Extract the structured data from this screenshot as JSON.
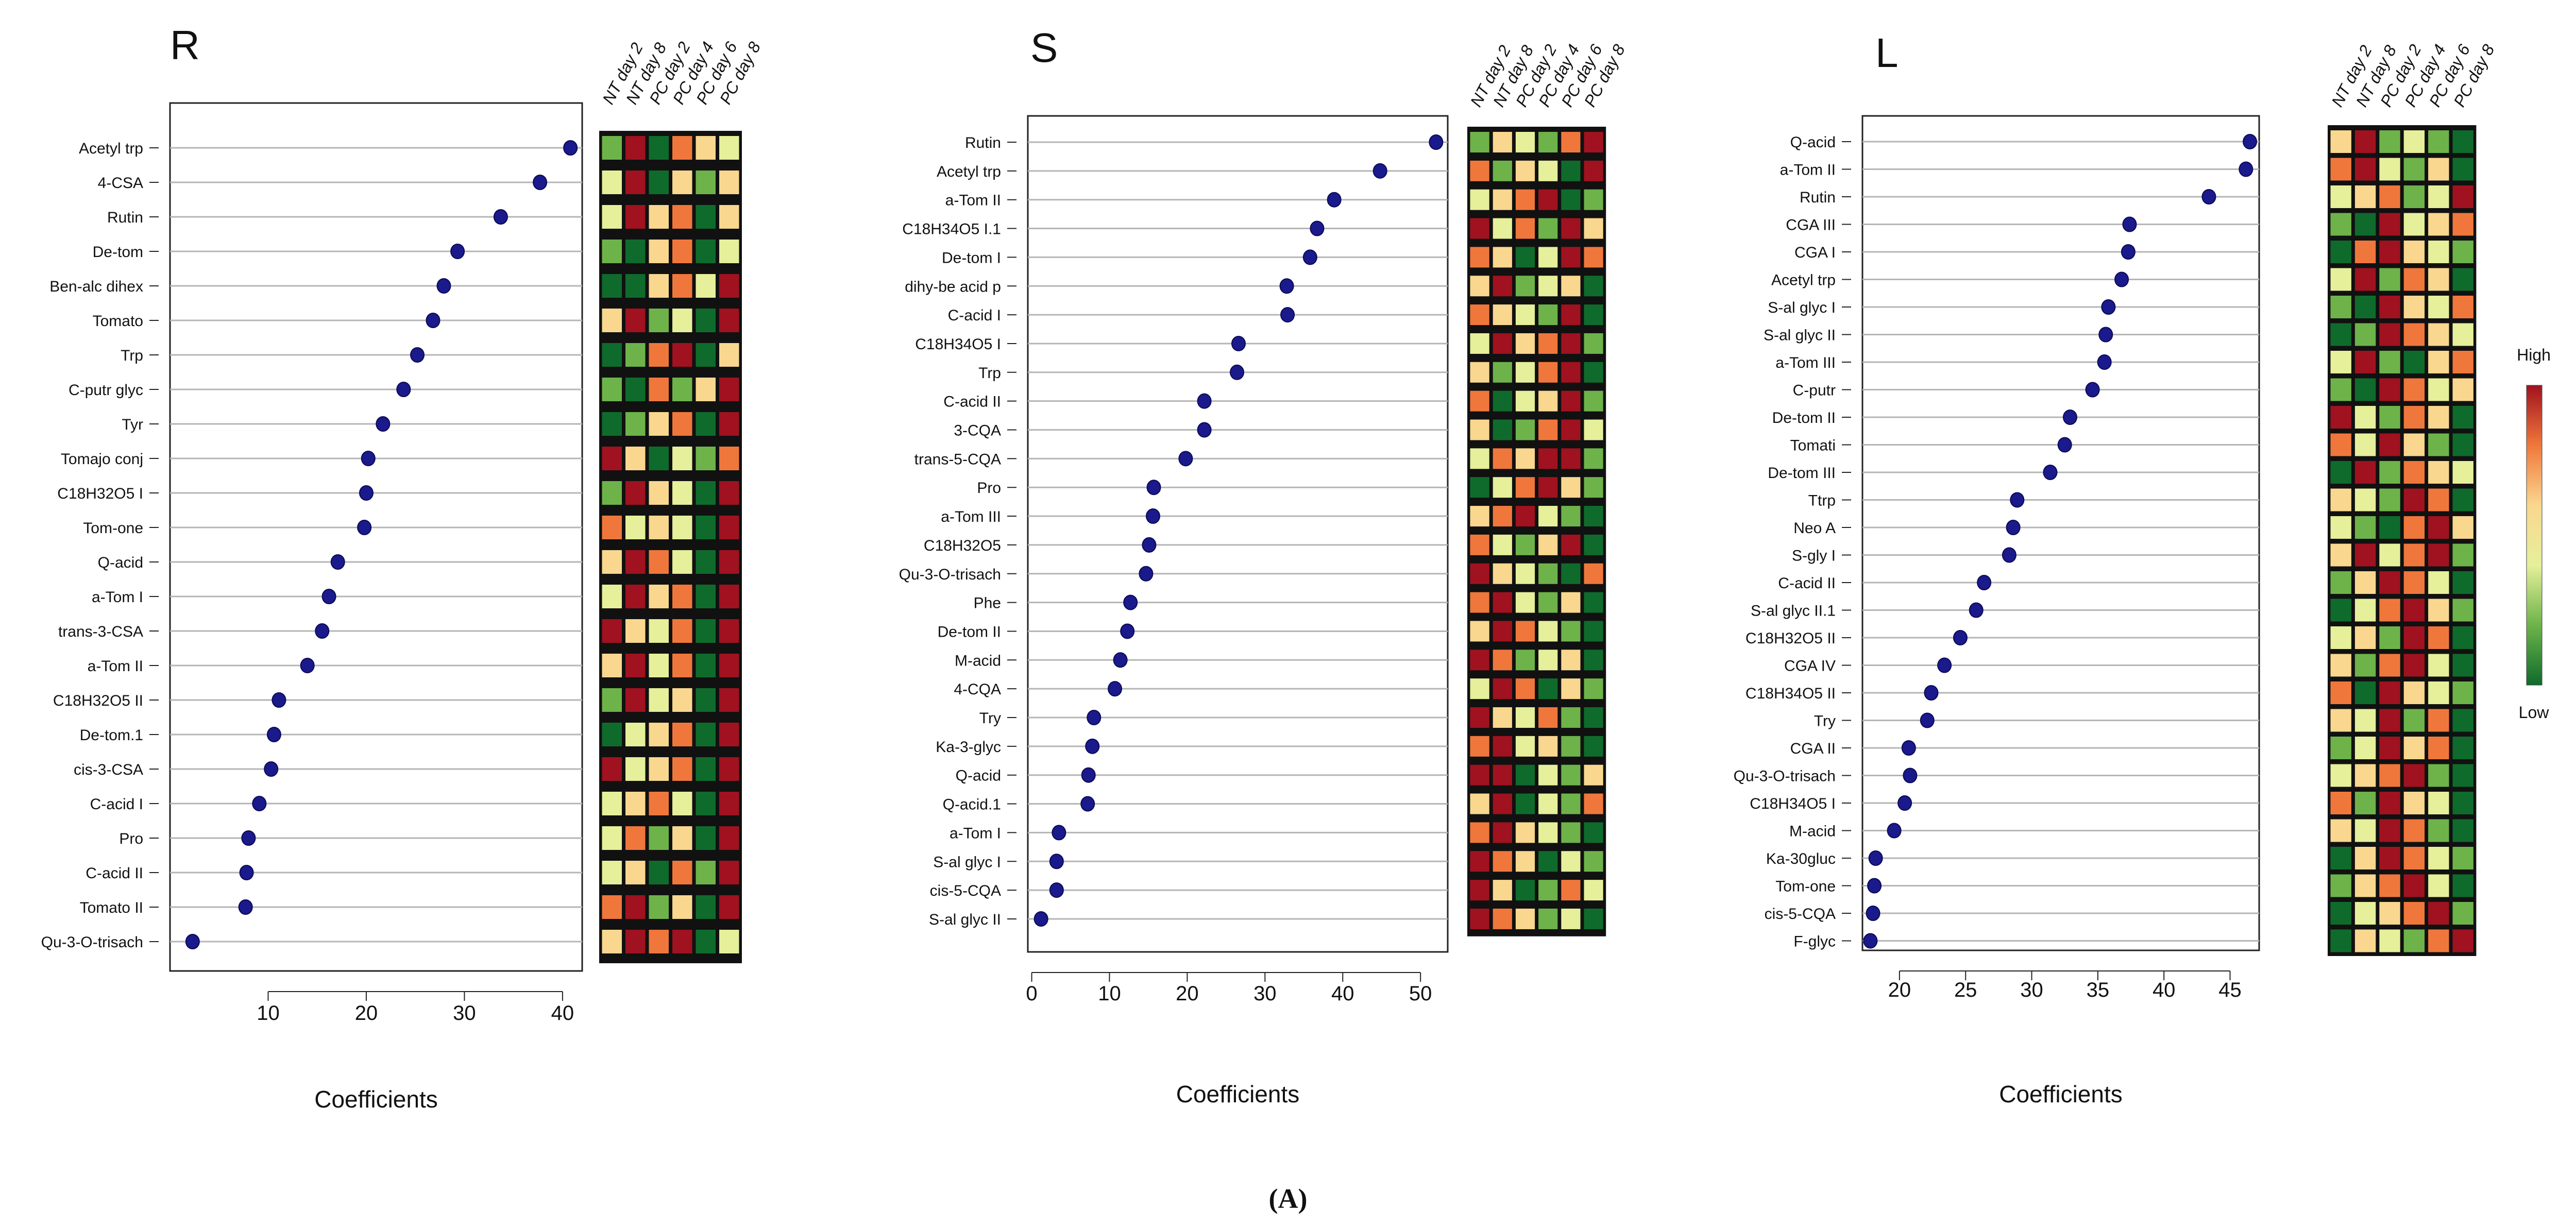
{
  "figure_label": "(A)",
  "colors": {
    "dot": "#1a1a8c",
    "gridline": "#b5b5b5",
    "heat_scale": [
      "#0f6b2c",
      "#6db34a",
      "#e6ef9a",
      "#f9d78f",
      "#f0773b",
      "#a0121f"
    ]
  },
  "legend": {
    "high_label": "High",
    "low_label": "Low"
  },
  "chart_data": [
    {
      "type": "scatter",
      "title": "R",
      "xlabel": "Coefficients",
      "xlim": [
        0,
        42
      ],
      "xticks": [
        10,
        20,
        30,
        40
      ],
      "heatmap_columns": [
        "NT day 2",
        "NT day 8",
        "PC day 2",
        "PC day 4",
        "PC day 6",
        "PC day 8"
      ],
      "categories": [
        "Acetyl trp",
        "4-CSA",
        "Rutin",
        "De-tom",
        "Ben-alc dihex",
        "Tomato",
        "Trp",
        "C-putr glyc",
        "Tyr",
        "Tomajo conj",
        "C18H32O5 I",
        "Tom-one",
        "Q-acid",
        "a-Tom I",
        "trans-3-CSA",
        "a-Tom II",
        "C18H32O5 II",
        "De-tom.1",
        "cis-3-CSA",
        "C-acid I",
        "Pro",
        "C-acid II",
        "Tomato II",
        "Qu-3-O-trisach"
      ],
      "values": [
        40.8,
        37.7,
        33.7,
        29.3,
        27.9,
        26.8,
        25.2,
        23.8,
        21.7,
        20.2,
        20.0,
        19.8,
        17.1,
        16.2,
        15.5,
        14.0,
        11.1,
        10.6,
        10.3,
        9.1,
        8.0,
        7.8,
        7.7,
        2.3
      ],
      "heatmap": [
        [
          1,
          5,
          0,
          4,
          3,
          2
        ],
        [
          2,
          5,
          0,
          3,
          1,
          3
        ],
        [
          2,
          5,
          3,
          4,
          0,
          3
        ],
        [
          1,
          0,
          3,
          4,
          0,
          2
        ],
        [
          0,
          0,
          3,
          4,
          2,
          5
        ],
        [
          3,
          5,
          1,
          2,
          0,
          5
        ],
        [
          0,
          1,
          4,
          5,
          0,
          3
        ],
        [
          1,
          0,
          4,
          1,
          3,
          5
        ],
        [
          0,
          1,
          3,
          4,
          0,
          5
        ],
        [
          5,
          3,
          0,
          2,
          1,
          4
        ],
        [
          1,
          5,
          3,
          2,
          0,
          5
        ],
        [
          4,
          2,
          3,
          2,
          0,
          5
        ],
        [
          3,
          5,
          4,
          2,
          0,
          5
        ],
        [
          2,
          5,
          3,
          4,
          0,
          5
        ],
        [
          5,
          3,
          2,
          4,
          0,
          5
        ],
        [
          3,
          5,
          2,
          4,
          0,
          5
        ],
        [
          1,
          5,
          2,
          3,
          0,
          5
        ],
        [
          0,
          2,
          3,
          4,
          0,
          5
        ],
        [
          5,
          2,
          3,
          4,
          0,
          5
        ],
        [
          2,
          3,
          4,
          2,
          0,
          5
        ],
        [
          2,
          4,
          1,
          3,
          0,
          5
        ],
        [
          2,
          3,
          0,
          4,
          1,
          5
        ],
        [
          4,
          5,
          1,
          3,
          0,
          5
        ],
        [
          3,
          5,
          4,
          5,
          0,
          2
        ]
      ]
    },
    {
      "type": "scatter",
      "title": "S",
      "xlabel": "Coefficients",
      "xlim": [
        -0.5,
        53.5
      ],
      "xticks": [
        0,
        10,
        20,
        30,
        40,
        50
      ],
      "heatmap_columns": [
        "NT day 2",
        "NT day 8",
        "PC day 2",
        "PC day 4",
        "PC day 6",
        "PC day 8"
      ],
      "categories": [
        "Rutin",
        "Acetyl trp",
        "a-Tom II",
        "C18H34O5 I.1",
        "De-tom I",
        "dihy-be acid p",
        "C-acid I",
        "C18H34O5 I",
        "Trp",
        "C-acid II",
        "3-CQA",
        "trans-5-CQA",
        "Pro",
        "a-Tom III",
        "C18H32O5",
        "Qu-3-O-trisach",
        "Phe",
        "De-tom II",
        "M-acid",
        "4-CQA",
        "Try",
        "Ka-3-glyc",
        "Q-acid",
        "Q-acid.1",
        "a-Tom I",
        "S-al glyc I",
        "cis-5-CQA",
        "S-al glyc II"
      ],
      "values": [
        52.0,
        44.8,
        38.9,
        36.7,
        35.8,
        32.8,
        32.9,
        26.6,
        26.4,
        22.2,
        22.2,
        19.8,
        15.7,
        15.6,
        15.1,
        14.7,
        12.7,
        12.3,
        11.4,
        10.7,
        8.0,
        7.8,
        7.3,
        7.2,
        3.5,
        3.2,
        3.2,
        1.2
      ],
      "heatmap": [
        [
          1,
          3,
          2,
          1,
          4,
          5
        ],
        [
          4,
          1,
          3,
          2,
          0,
          5
        ],
        [
          2,
          3,
          4,
          5,
          0,
          1
        ],
        [
          5,
          2,
          4,
          1,
          5,
          3
        ],
        [
          4,
          3,
          0,
          2,
          5,
          4
        ],
        [
          3,
          5,
          1,
          2,
          3,
          0
        ],
        [
          4,
          3,
          2,
          1,
          5,
          0
        ],
        [
          2,
          5,
          3,
          4,
          5,
          1
        ],
        [
          3,
          1,
          2,
          4,
          5,
          0
        ],
        [
          4,
          0,
          2,
          3,
          5,
          1
        ],
        [
          3,
          0,
          1,
          4,
          5,
          2
        ],
        [
          2,
          4,
          3,
          5,
          5,
          1
        ],
        [
          0,
          2,
          4,
          5,
          3,
          1
        ],
        [
          3,
          4,
          5,
          2,
          1,
          0
        ],
        [
          4,
          2,
          1,
          3,
          5,
          0
        ],
        [
          5,
          3,
          2,
          1,
          0,
          4
        ],
        [
          4,
          5,
          2,
          1,
          3,
          0
        ],
        [
          3,
          5,
          4,
          2,
          1,
          0
        ],
        [
          5,
          4,
          1,
          2,
          3,
          0
        ],
        [
          2,
          5,
          4,
          0,
          3,
          1
        ],
        [
          5,
          3,
          2,
          4,
          1,
          0
        ],
        [
          4,
          5,
          2,
          3,
          1,
          0
        ],
        [
          5,
          5,
          0,
          2,
          1,
          3
        ],
        [
          3,
          5,
          0,
          2,
          1,
          4
        ],
        [
          4,
          5,
          3,
          2,
          1,
          0
        ],
        [
          5,
          4,
          3,
          0,
          2,
          1
        ],
        [
          5,
          3,
          0,
          1,
          4,
          2
        ],
        [
          5,
          4,
          3,
          1,
          2,
          0
        ]
      ]
    },
    {
      "type": "scatter",
      "title": "L",
      "xlabel": "Coefficients",
      "xlim": [
        17.2,
        47.2
      ],
      "xticks": [
        20,
        25,
        30,
        35,
        40,
        45
      ],
      "heatmap_columns": [
        "NT day 2",
        "NT day 8",
        "PC day 2",
        "PC day 4",
        "PC day 6",
        "PC day 8"
      ],
      "categories": [
        "Q-acid",
        "a-Tom II",
        "Rutin",
        "CGA III",
        "CGA I",
        "Acetyl trp",
        "S-al glyc I",
        "S-al glyc II",
        "a-Tom III",
        "C-putr",
        "De-tom II",
        "Tomati",
        "De-tom III",
        "Ttrp",
        "Neo A",
        "S-gly I",
        "C-acid II",
        "S-al glyc II.1",
        "C18H32O5 II",
        "CGA IV",
        "C18H34O5 II",
        "Try",
        "CGA II",
        "Qu-3-O-trisach",
        "C18H34O5 I",
        "M-acid",
        "Ka-30gluc",
        "Tom-one",
        "cis-5-CQA",
        "F-glyc"
      ],
      "values": [
        46.5,
        46.2,
        43.4,
        37.4,
        37.3,
        36.8,
        35.8,
        35.6,
        35.5,
        34.6,
        32.9,
        32.5,
        31.4,
        28.9,
        28.6,
        28.3,
        26.4,
        25.8,
        24.6,
        23.4,
        22.4,
        22.1,
        20.7,
        20.8,
        20.4,
        19.6,
        18.2,
        18.1,
        18.0,
        17.8
      ],
      "heatmap": [
        [
          3,
          5,
          1,
          2,
          1,
          0
        ],
        [
          4,
          5,
          2,
          1,
          3,
          0
        ],
        [
          2,
          3,
          4,
          1,
          2,
          5
        ],
        [
          1,
          0,
          5,
          2,
          3,
          4
        ],
        [
          0,
          4,
          5,
          3,
          2,
          1
        ],
        [
          2,
          5,
          1,
          4,
          3,
          0
        ],
        [
          1,
          0,
          5,
          3,
          2,
          4
        ],
        [
          0,
          1,
          5,
          4,
          3,
          2
        ],
        [
          2,
          5,
          1,
          0,
          3,
          4
        ],
        [
          1,
          0,
          5,
          4,
          2,
          3
        ],
        [
          5,
          2,
          1,
          4,
          3,
          0
        ],
        [
          4,
          2,
          5,
          3,
          1,
          0
        ],
        [
          0,
          5,
          1,
          4,
          3,
          2
        ],
        [
          3,
          2,
          1,
          5,
          4,
          0
        ],
        [
          2,
          1,
          0,
          4,
          5,
          3
        ],
        [
          3,
          5,
          2,
          4,
          5,
          1
        ],
        [
          1,
          3,
          5,
          4,
          2,
          0
        ],
        [
          0,
          2,
          4,
          5,
          3,
          1
        ],
        [
          2,
          3,
          1,
          5,
          4,
          0
        ],
        [
          3,
          1,
          4,
          5,
          2,
          0
        ],
        [
          4,
          0,
          5,
          3,
          2,
          1
        ],
        [
          3,
          2,
          5,
          1,
          4,
          0
        ],
        [
          1,
          2,
          5,
          3,
          4,
          0
        ],
        [
          2,
          3,
          4,
          5,
          1,
          0
        ],
        [
          4,
          1,
          5,
          3,
          2,
          0
        ],
        [
          3,
          2,
          5,
          4,
          1,
          0
        ],
        [
          0,
          3,
          5,
          4,
          2,
          1
        ],
        [
          1,
          3,
          4,
          5,
          2,
          0
        ],
        [
          0,
          2,
          3,
          4,
          5,
          1
        ],
        [
          0,
          3,
          2,
          1,
          4,
          5
        ]
      ]
    }
  ]
}
